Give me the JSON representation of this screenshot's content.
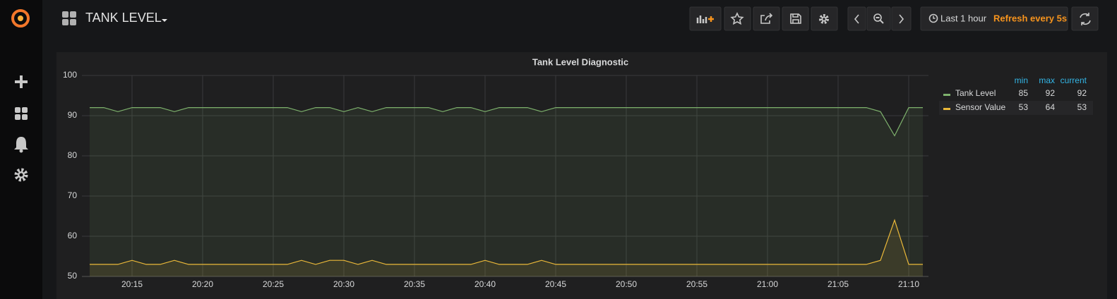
{
  "header": {
    "title": "TANK LEVEL",
    "time_range": "Last 1 hour",
    "refresh": "Refresh every 5s"
  },
  "chart_data": {
    "type": "line",
    "title": "Tank Level Diagnostic",
    "categories": [
      null,
      null,
      null,
      "20:15",
      null,
      null,
      null,
      null,
      "20:20",
      null,
      null,
      null,
      null,
      "20:25",
      null,
      null,
      null,
      null,
      "20:30",
      null,
      null,
      null,
      null,
      "20:35",
      null,
      null,
      null,
      null,
      "20:40",
      null,
      null,
      null,
      null,
      "20:45",
      null,
      null,
      null,
      null,
      "20:50",
      null,
      null,
      null,
      null,
      "20:55",
      null,
      null,
      null,
      null,
      "21:00",
      null,
      null,
      null,
      null,
      "21:05",
      null,
      null,
      null,
      null,
      "21:10",
      null
    ],
    "ylim": [
      50,
      100
    ],
    "yticks": [
      50,
      60,
      70,
      80,
      90,
      100
    ],
    "grid": true,
    "legend_columns": [
      "min",
      "max",
      "current"
    ],
    "series": [
      {
        "name": "Tank Level",
        "color": "#7eb26d",
        "min": 85,
        "max": 92,
        "current": 92,
        "values": [
          92,
          92,
          91,
          92,
          92,
          92,
          91,
          92,
          92,
          92,
          92,
          92,
          92,
          92,
          92,
          91,
          92,
          92,
          91,
          92,
          91,
          92,
          92,
          92,
          92,
          91,
          92,
          92,
          91,
          92,
          92,
          92,
          91,
          92,
          92,
          92,
          92,
          92,
          92,
          92,
          92,
          92,
          92,
          92,
          92,
          92,
          92,
          92,
          92,
          92,
          92,
          92,
          92,
          92,
          92,
          92,
          91,
          85,
          92,
          92
        ]
      },
      {
        "name": "Sensor Value",
        "color": "#eab839",
        "min": 53,
        "max": 64,
        "current": 53,
        "values": [
          53,
          53,
          53,
          54,
          53,
          53,
          54,
          53,
          53,
          53,
          53,
          53,
          53,
          53,
          53,
          54,
          53,
          54,
          54,
          53,
          54,
          53,
          53,
          53,
          53,
          53,
          53,
          53,
          54,
          53,
          53,
          53,
          54,
          53,
          53,
          53,
          53,
          53,
          53,
          53,
          53,
          53,
          53,
          53,
          53,
          53,
          53,
          53,
          53,
          53,
          53,
          53,
          53,
          53,
          53,
          53,
          54,
          64,
          53,
          53
        ]
      }
    ]
  }
}
